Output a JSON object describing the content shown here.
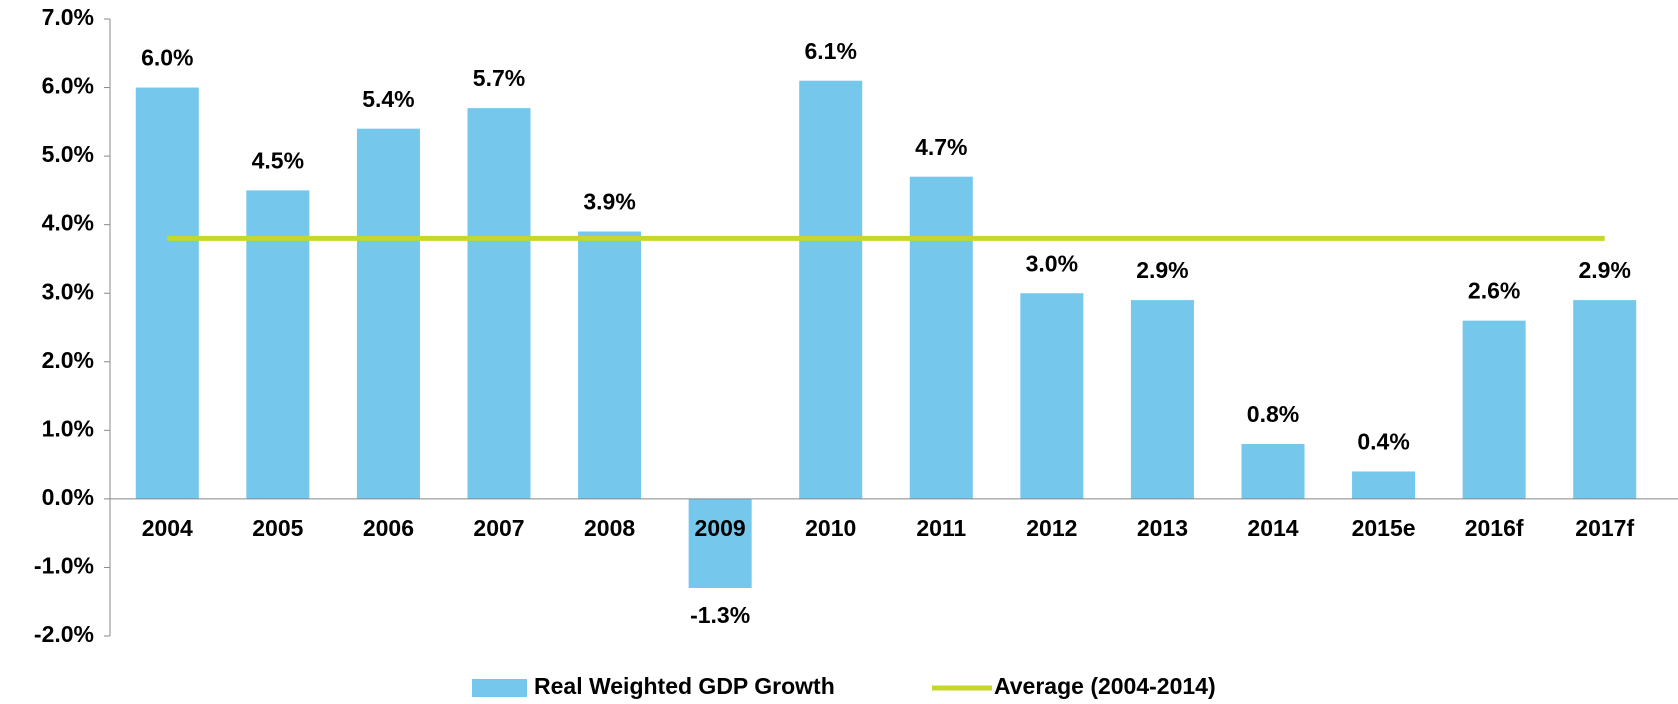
{
  "chart_data": {
    "type": "bar",
    "categories": [
      "2004",
      "2005",
      "2006",
      "2007",
      "2008",
      "2009",
      "2010",
      "2011",
      "2012",
      "2013",
      "2014",
      "2015e",
      "2016f",
      "2017f"
    ],
    "series": [
      {
        "name": "Real Weighted GDP Growth",
        "color": "#75c7ec",
        "type": "bar",
        "values": [
          6.0,
          4.5,
          5.4,
          5.7,
          3.9,
          -1.3,
          6.1,
          4.7,
          3.0,
          2.9,
          0.8,
          0.4,
          2.6,
          2.9
        ],
        "value_labels": [
          "6.0%",
          "4.5%",
          "5.4%",
          "5.7%",
          "3.9%",
          "-1.3%",
          "6.1%",
          "4.7%",
          "3.0%",
          "2.9%",
          "0.8%",
          "0.4%",
          "2.6%",
          "2.9%"
        ]
      },
      {
        "name": "Average (2004-2014)",
        "color": "#c5d72a",
        "type": "line",
        "values": [
          3.8,
          3.8,
          3.8,
          3.8,
          3.8,
          3.8,
          3.8,
          3.8,
          3.8,
          3.8,
          3.8,
          3.8,
          3.8,
          3.8
        ]
      }
    ],
    "ylim": [
      -2,
      7
    ],
    "yticks": [
      {
        "value": -2,
        "label": "-2.0%"
      },
      {
        "value": -1,
        "label": "-1.0%"
      },
      {
        "value": 0,
        "label": "0.0%"
      },
      {
        "value": 1,
        "label": "1.0%"
      },
      {
        "value": 2,
        "label": "2.0%"
      },
      {
        "value": 3,
        "label": "3.0%"
      },
      {
        "value": 4,
        "label": "4.0%"
      },
      {
        "value": 5,
        "label": "5.0%"
      },
      {
        "value": 6,
        "label": "6.0%"
      },
      {
        "value": 7,
        "label": "7.0%"
      }
    ],
    "legend": "bottom"
  }
}
